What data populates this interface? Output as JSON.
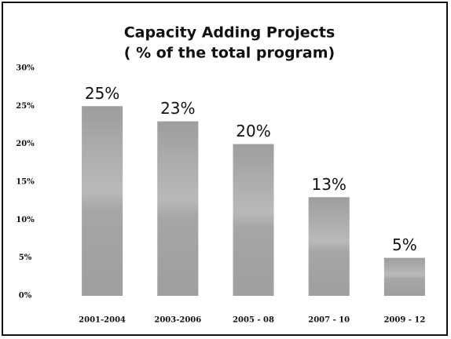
{
  "chart_data": {
    "type": "bar",
    "title": "Capacity Adding Projects",
    "subtitle": "( % of the total program)",
    "categories": [
      "2001-2004",
      "2003-2006",
      "2005 - 08",
      "2007 - 10",
      "2009 - 12"
    ],
    "values": [
      25,
      23,
      20,
      13,
      5
    ],
    "value_labels": [
      "25%",
      "23%",
      "20%",
      "13%",
      "5%"
    ],
    "color": "#a3a3a3",
    "ylim": [
      0,
      30
    ],
    "yticks": [
      {
        "value": 0,
        "label": "0%"
      },
      {
        "value": 5,
        "label": "5%"
      },
      {
        "value": 10,
        "label": "10%"
      },
      {
        "value": 15,
        "label": "15%"
      },
      {
        "value": 20,
        "label": "20%"
      },
      {
        "value": 25,
        "label": "25%"
      },
      {
        "value": 30,
        "label": "30%"
      }
    ],
    "grid": false
  }
}
